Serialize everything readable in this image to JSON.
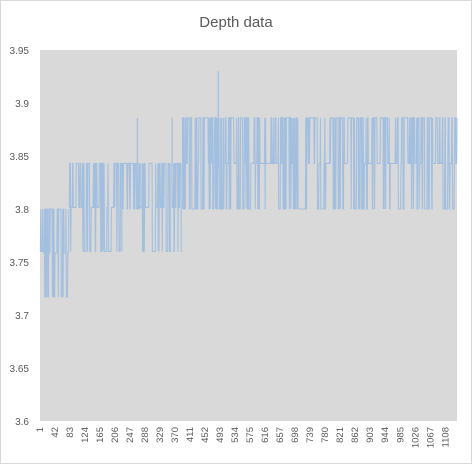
{
  "chart_data": {
    "type": "line",
    "title": "Depth data",
    "xlabel": "",
    "ylabel": "",
    "ylim": [
      3.6,
      3.95
    ],
    "yticks": [
      "3.6",
      "3.65",
      "3.7",
      "3.75",
      "3.8",
      "3.85",
      "3.9",
      "3.95"
    ],
    "xticks": [
      "1",
      "42",
      "83",
      "124",
      "165",
      "206",
      "247",
      "288",
      "329",
      "370",
      "411",
      "452",
      "493",
      "534",
      "575",
      "616",
      "657",
      "698",
      "739",
      "780",
      "821",
      "862",
      "903",
      "944",
      "985",
      "1026",
      "1067",
      "1108"
    ],
    "x_max": 1140,
    "plot_background": "#d9d9d9",
    "line_color": "#a2bfe0",
    "grid": false,
    "legend": "none",
    "segments": [
      {
        "x_start": 1,
        "x_end": 10,
        "low": 3.76,
        "high": 3.8
      },
      {
        "x_start": 10,
        "x_end": 80,
        "low": 3.717,
        "high": 3.8
      },
      {
        "x_start": 80,
        "x_end": 225,
        "low": 3.76,
        "high": 3.843
      },
      {
        "x_start": 225,
        "x_end": 275,
        "low": 3.8,
        "high": 3.843
      },
      {
        "x_start": 275,
        "x_end": 360,
        "low": 3.76,
        "high": 3.843
      },
      {
        "x_start": 360,
        "x_end": 390,
        "low": 3.76,
        "high": 3.843
      },
      {
        "x_start": 390,
        "x_end": 1140,
        "low": 3.8,
        "high": 3.886
      }
    ],
    "spikes": [
      {
        "x": 267,
        "value": 3.886
      },
      {
        "x": 362,
        "value": 3.886
      },
      {
        "x": 488,
        "value": 3.93
      }
    ]
  }
}
